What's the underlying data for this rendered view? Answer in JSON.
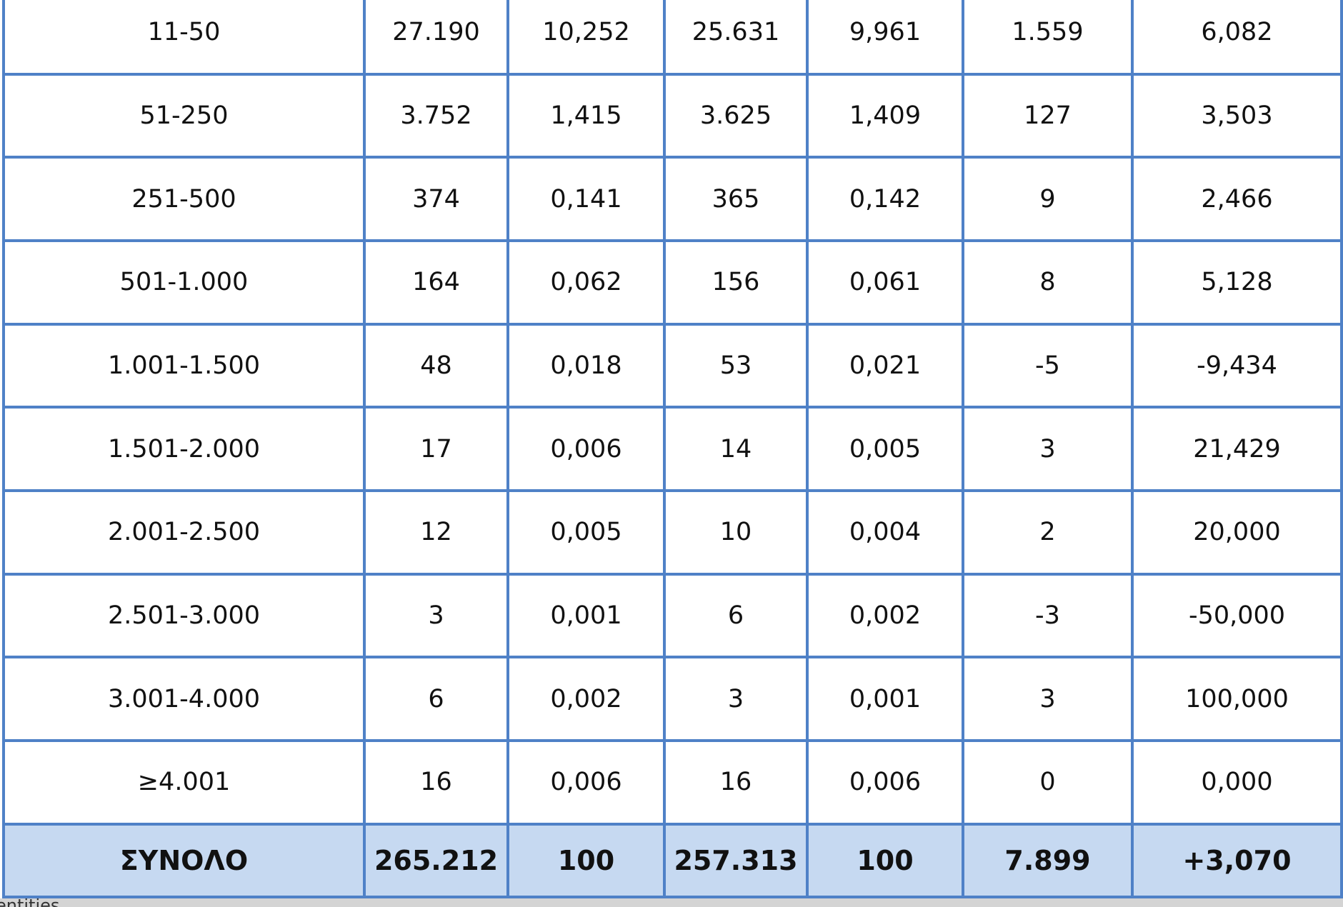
{
  "table": {
    "rows": [
      [
        "11-50",
        "27.190",
        "10,252",
        "25.631",
        "9,961",
        "1.559",
        "6,082"
      ],
      [
        "51-250",
        "3.752",
        "1,415",
        "3.625",
        "1,409",
        "127",
        "3,503"
      ],
      [
        "251-500",
        "374",
        "0,141",
        "365",
        "0,142",
        "9",
        "2,466"
      ],
      [
        "501-1.000",
        "164",
        "0,062",
        "156",
        "0,061",
        "8",
        "5,128"
      ],
      [
        "1.001-1.500",
        "48",
        "0,018",
        "53",
        "0,021",
        "-5",
        "-9,434"
      ],
      [
        "1.501-2.000",
        "17",
        "0,006",
        "14",
        "0,005",
        "3",
        "21,429"
      ],
      [
        "2.001-2.500",
        "12",
        "0,005",
        "10",
        "0,004",
        "2",
        "20,000"
      ],
      [
        "2.501-3.000",
        "3",
        "0,001",
        "6",
        "0,002",
        "-3",
        "-50,000"
      ],
      [
        "3.001-4.000",
        "6",
        "0,002",
        "3",
        "0,001",
        "3",
        "100,000"
      ],
      [
        "≥4.001",
        "16",
        "0,006",
        "16",
        "0,006",
        "0",
        "0,000"
      ]
    ],
    "total": [
      "ΣΥΝΟΛΟ",
      "265.212",
      "100",
      "257.313",
      "100",
      "7.899",
      "+3,070"
    ]
  },
  "sheet_tab": "entities"
}
